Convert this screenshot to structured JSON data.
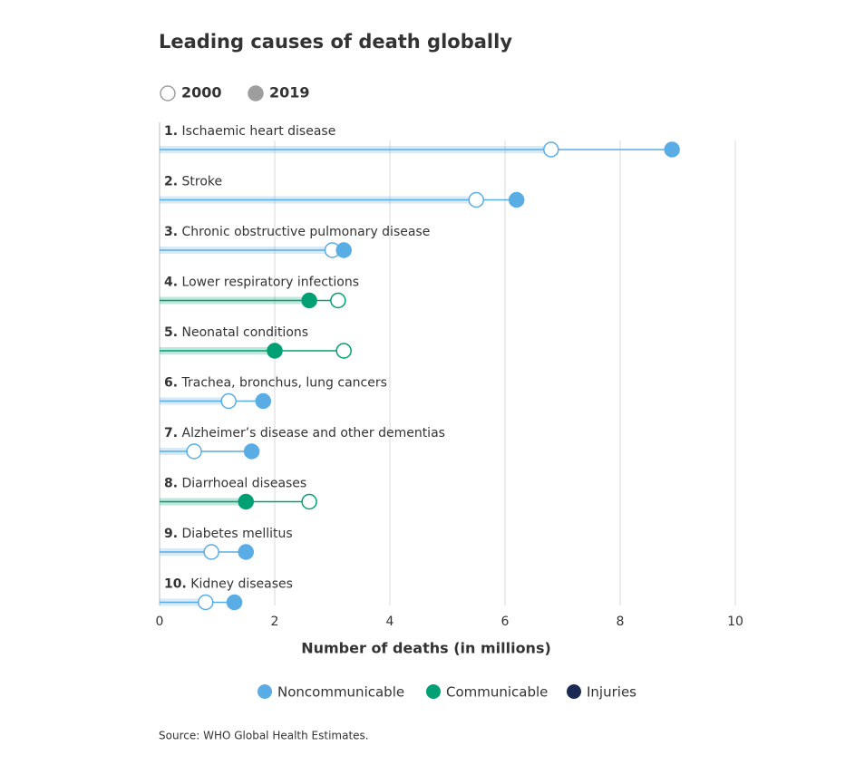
{
  "chart_data": {
    "type": "dumbbell",
    "title": "Leading causes of death globally",
    "ranks": [
      "1.",
      "2.",
      "3.",
      "4.",
      "5.",
      "6.",
      "7.",
      "8.",
      "9.",
      "10."
    ],
    "categories": [
      "Ischaemic heart disease",
      "Stroke",
      "Chronic obstructive pulmonary disease",
      "Lower respiratory infections",
      "Neonatal conditions",
      "Trachea, bronchus, lung cancers",
      "Alzheimer’s disease and other dementias",
      "Diarrhoeal diseases",
      "Diabetes mellitus",
      "Kidney diseases"
    ],
    "category_groups": [
      "Noncommunicable",
      "Noncommunicable",
      "Noncommunicable",
      "Communicable",
      "Communicable",
      "Noncommunicable",
      "Noncommunicable",
      "Communicable",
      "Noncommunicable",
      "Noncommunicable"
    ],
    "groups": [
      {
        "name": "Noncommunicable",
        "color": "#5aace4"
      },
      {
        "name": "Communicable",
        "color": "#00a074"
      },
      {
        "name": "Injuries",
        "color": "#1b2a55"
      }
    ],
    "series": [
      {
        "name": "2000",
        "color": "#9e9e9e",
        "marker": "hollow",
        "values": [
          6.8,
          5.5,
          3.0,
          3.1,
          3.2,
          1.2,
          0.6,
          2.6,
          0.9,
          0.8
        ]
      },
      {
        "name": "2019",
        "color": "#9e9e9e",
        "marker": "filled",
        "values": [
          8.9,
          6.2,
          3.2,
          2.6,
          2.0,
          1.8,
          1.6,
          1.5,
          1.5,
          1.3
        ]
      }
    ],
    "xlabel": "Number of deaths (in millions)",
    "xlim": [
      0,
      10
    ],
    "xticks": [
      0,
      2,
      4,
      6,
      8,
      10
    ],
    "grid": true,
    "source": "Source: WHO Global Health Estimates."
  }
}
